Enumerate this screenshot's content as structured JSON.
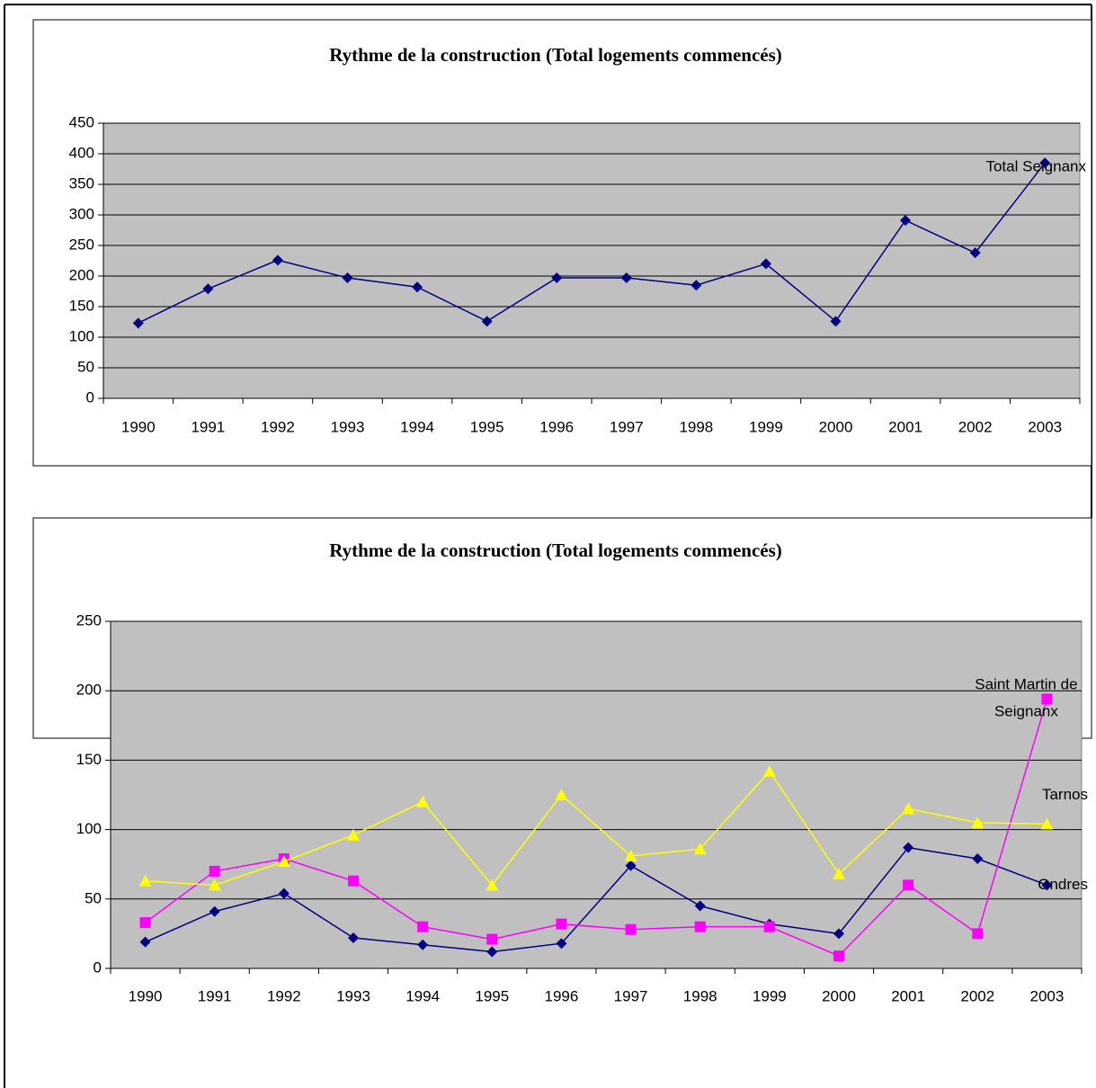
{
  "chart_data": [
    {
      "type": "line",
      "title": "Rythme de la construction (Total logements commencés)",
      "categories": [
        "1990",
        "1991",
        "1992",
        "1993",
        "1994",
        "1995",
        "1996",
        "1997",
        "1998",
        "1999",
        "2000",
        "2001",
        "2002",
        "2003"
      ],
      "series": [
        {
          "name": "Total Seignanx",
          "color": "#000080",
          "marker": "diamond",
          "values": [
            123,
            179,
            226,
            197,
            182,
            126,
            197,
            197,
            185,
            220,
            126,
            291,
            238,
            385
          ]
        }
      ],
      "ylim": [
        0,
        450
      ],
      "yticks": [
        0,
        50,
        100,
        150,
        200,
        250,
        300,
        350,
        400,
        450
      ],
      "grid": true
    },
    {
      "type": "line",
      "title": "Rythme de la construction (Total logements commencés)",
      "categories": [
        "1990",
        "1991",
        "1992",
        "1993",
        "1994",
        "1995",
        "1996",
        "1997",
        "1998",
        "1999",
        "2000",
        "2001",
        "2002",
        "2003"
      ],
      "series": [
        {
          "name": "Ondres",
          "color": "#000080",
          "marker": "diamond",
          "values": [
            19,
            41,
            54,
            22,
            17,
            12,
            18,
            74,
            45,
            32,
            25,
            87,
            79,
            60
          ]
        },
        {
          "name": "Saint Martin de Seignanx",
          "color": "#ff00ff",
          "marker": "square",
          "values": [
            33,
            70,
            79,
            63,
            30,
            21,
            32,
            28,
            30,
            30,
            9,
            60,
            25,
            194
          ]
        },
        {
          "name": "Tarnos",
          "color": "#ffff00",
          "marker": "triangle",
          "values": [
            63,
            60,
            77,
            96,
            120,
            60,
            125,
            81,
            86,
            142,
            68,
            115,
            105,
            104
          ]
        }
      ],
      "ylim": [
        0,
        250
      ],
      "yticks": [
        0,
        50,
        100,
        150,
        200,
        250
      ],
      "grid": true
    }
  ]
}
